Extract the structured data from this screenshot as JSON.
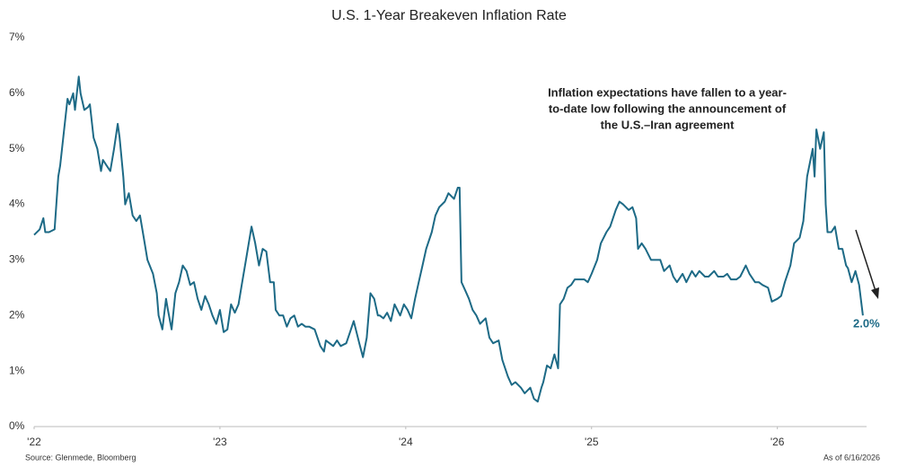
{
  "chart_data": {
    "type": "line",
    "title": "U.S. 1-Year Breakeven Inflation Rate",
    "annotation": [
      "Inflation expectations have fallen to a year-",
      "to-date low following the announcement of",
      "the U.S.–Iran agreement"
    ],
    "end_label": "2.0%",
    "source": "Source: Glenmede, Bloomberg",
    "as_of": "As of 6/16/2026",
    "color": "#1d6a86",
    "xlim": [
      2022,
      2026.48
    ],
    "xticks": [
      {
        "value": 2022,
        "label": "'22"
      },
      {
        "value": 2023,
        "label": "'23"
      },
      {
        "value": 2024,
        "label": "'24"
      },
      {
        "value": 2025,
        "label": "'25"
      },
      {
        "value": 2026,
        "label": "'26"
      }
    ],
    "ylim": [
      0,
      7
    ],
    "yticks": [
      {
        "value": 0,
        "label": "0%"
      },
      {
        "value": 1,
        "label": "1%"
      },
      {
        "value": 2,
        "label": "2%"
      },
      {
        "value": 3,
        "label": "3%"
      },
      {
        "value": 4,
        "label": "4%"
      },
      {
        "value": 5,
        "label": "5%"
      },
      {
        "value": 6,
        "label": "6%"
      },
      {
        "value": 7,
        "label": "7%"
      }
    ],
    "x": [
      2022.0,
      2022.03,
      2022.05,
      2022.06,
      2022.08,
      2022.11,
      2022.13,
      2022.14,
      2022.16,
      2022.18,
      2022.19,
      2022.21,
      2022.22,
      2022.24,
      2022.25,
      2022.27,
      2022.29,
      2022.3,
      2022.32,
      2022.34,
      2022.36,
      2022.37,
      2022.39,
      2022.41,
      2022.43,
      2022.45,
      2022.46,
      2022.48,
      2022.49,
      2022.51,
      2022.53,
      2022.55,
      2022.57,
      2022.59,
      2022.61,
      2022.64,
      2022.66,
      2022.67,
      2022.69,
      2022.71,
      2022.72,
      2022.74,
      2022.76,
      2022.78,
      2022.8,
      2022.82,
      2022.84,
      2022.86,
      2022.88,
      2022.9,
      2022.92,
      2022.94,
      2022.96,
      2022.98,
      2023.0,
      2023.02,
      2023.04,
      2023.06,
      2023.08,
      2023.1,
      2023.12,
      2023.14,
      2023.17,
      2023.19,
      2023.21,
      2023.23,
      2023.25,
      2023.27,
      2023.29,
      2023.3,
      2023.32,
      2023.34,
      2023.36,
      2023.38,
      2023.4,
      2023.42,
      2023.44,
      2023.46,
      2023.48,
      2023.51,
      2023.54,
      2023.56,
      2023.57,
      2023.59,
      2023.61,
      2023.63,
      2023.65,
      2023.68,
      2023.7,
      2023.72,
      2023.75,
      2023.77,
      2023.79,
      2023.81,
      2023.83,
      2023.85,
      2023.86,
      2023.88,
      2023.9,
      2023.92,
      2023.94,
      2023.97,
      2023.99,
      2024.01,
      2024.03,
      2024.05,
      2024.07,
      2024.09,
      2024.11,
      2024.14,
      2024.16,
      2024.18,
      2024.21,
      2024.23,
      2024.26,
      2024.28,
      2024.29,
      2024.3,
      2024.32,
      2024.34,
      2024.36,
      2024.38,
      2024.4,
      2024.43,
      2024.45,
      2024.47,
      2024.5,
      2024.52,
      2024.55,
      2024.57,
      2024.59,
      2024.62,
      2024.64,
      2024.67,
      2024.69,
      2024.71,
      2024.73,
      2024.74,
      2024.76,
      2024.78,
      2024.8,
      2024.82,
      2024.83,
      2024.85,
      2024.87,
      2024.89,
      2024.91,
      2024.93,
      2024.96,
      2024.98,
      2025.0,
      2025.03,
      2025.05,
      2025.08,
      2025.1,
      2025.13,
      2025.15,
      2025.17,
      2025.2,
      2025.22,
      2025.24,
      2025.25,
      2025.27,
      2025.29,
      2025.32,
      2025.34,
      2025.37,
      2025.39,
      2025.42,
      2025.44,
      2025.46,
      2025.49,
      2025.51,
      2025.54,
      2025.56,
      2025.58,
      2025.61,
      2025.63,
      2025.66,
      2025.68,
      2025.71,
      2025.73,
      2025.75,
      2025.78,
      2025.8,
      2025.83,
      2025.85,
      2025.88,
      2025.9,
      2025.92,
      2025.95,
      2025.97,
      2026.0,
      2026.02,
      2026.04,
      2026.07,
      2026.09,
      2026.12,
      2026.14,
      2026.16,
      2026.19,
      2026.2,
      2026.21,
      2026.23,
      2026.25,
      2026.26,
      2026.27,
      2026.29,
      2026.31,
      2026.33,
      2026.35,
      2026.37,
      2026.38,
      2026.4,
      2026.42,
      2026.44,
      2026.46
    ],
    "values": [
      3.45,
      3.55,
      3.75,
      3.5,
      3.5,
      3.55,
      4.5,
      4.7,
      5.3,
      5.9,
      5.8,
      6.0,
      5.7,
      6.3,
      6.0,
      5.7,
      5.75,
      5.8,
      5.2,
      5.0,
      4.6,
      4.8,
      4.7,
      4.6,
      5.0,
      5.45,
      5.2,
      4.5,
      4.0,
      4.2,
      3.8,
      3.7,
      3.8,
      3.4,
      3.0,
      2.75,
      2.4,
      2.0,
      1.75,
      2.3,
      2.1,
      1.75,
      2.4,
      2.6,
      2.9,
      2.8,
      2.55,
      2.6,
      2.3,
      2.1,
      2.35,
      2.2,
      2.0,
      1.85,
      2.1,
      1.7,
      1.75,
      2.2,
      2.05,
      2.2,
      2.6,
      3.0,
      3.6,
      3.3,
      2.9,
      3.2,
      3.15,
      2.6,
      2.6,
      2.1,
      2.0,
      2.0,
      1.8,
      1.95,
      2.0,
      1.8,
      1.85,
      1.8,
      1.8,
      1.75,
      1.45,
      1.35,
      1.55,
      1.5,
      1.45,
      1.55,
      1.45,
      1.5,
      1.7,
      1.9,
      1.5,
      1.25,
      1.6,
      2.4,
      2.3,
      2.0,
      2.0,
      1.95,
      2.05,
      1.9,
      2.2,
      2.0,
      2.2,
      2.1,
      1.95,
      2.3,
      2.6,
      2.9,
      3.2,
      3.5,
      3.8,
      3.95,
      4.05,
      4.2,
      4.1,
      4.3,
      4.3,
      2.6,
      2.45,
      2.3,
      2.1,
      2.0,
      1.85,
      1.95,
      1.6,
      1.5,
      1.55,
      1.2,
      0.9,
      0.75,
      0.8,
      0.7,
      0.6,
      0.7,
      0.5,
      0.45,
      0.7,
      0.8,
      1.1,
      1.05,
      1.3,
      1.05,
      2.2,
      2.3,
      2.5,
      2.55,
      2.65,
      2.65,
      2.65,
      2.6,
      2.75,
      3.0,
      3.3,
      3.5,
      3.6,
      3.9,
      4.05,
      4.0,
      3.9,
      3.95,
      3.75,
      3.2,
      3.3,
      3.2,
      3.0,
      3.0,
      3.0,
      2.8,
      2.9,
      2.7,
      2.6,
      2.75,
      2.6,
      2.8,
      2.7,
      2.8,
      2.7,
      2.7,
      2.8,
      2.7,
      2.7,
      2.75,
      2.65,
      2.65,
      2.7,
      2.9,
      2.75,
      2.6,
      2.6,
      2.55,
      2.5,
      2.25,
      2.3,
      2.35,
      2.6,
      2.9,
      3.3,
      3.4,
      3.7,
      4.5,
      5.0,
      4.5,
      5.35,
      5.0,
      5.3,
      4.0,
      3.5,
      3.5,
      3.6,
      3.2,
      3.2,
      2.9,
      2.85,
      2.6,
      2.8,
      2.55,
      2.0
    ]
  }
}
